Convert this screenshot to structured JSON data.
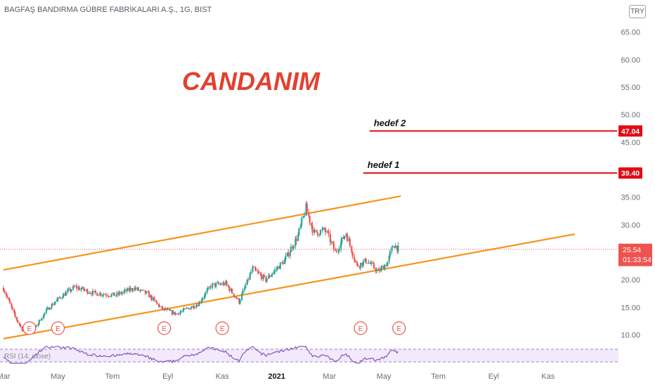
{
  "header": {
    "symbol_title": "BAGFAŞ BANDIRMA GÜBRE FABRİKALARI A.Ş., 1G, BIST",
    "currency": "TRY"
  },
  "annotations": {
    "watermark": "CANDANIM",
    "target1_label": "hedef 1",
    "target2_label": "hedef 2",
    "target1_value": "39.40",
    "target2_value": "47.04"
  },
  "last_price": {
    "value": "25.54",
    "countdown": "01:33:54"
  },
  "rsi": {
    "label": "RSI (14, close)"
  },
  "event_marker_label": "E",
  "colors": {
    "up_candle": "#26a69a",
    "down_candle": "#ef5350",
    "channel": "#f7941d",
    "target_line": "#e50914",
    "watermark": "#e2412f",
    "rsi_line": "#7e57c2",
    "rsi_band": "#e9dcf7",
    "price_badge": "#ef5350"
  },
  "chart_data": {
    "type": "candlestick",
    "title": "BAGFAŞ BANDIRMA GÜBRE FABRİKALARI A.Ş., 1G, BIST",
    "y_axis": {
      "ticks": [
        "10.00",
        "15.00",
        "20.00",
        "25.00",
        "30.00",
        "35.00",
        "40.00",
        "45.00",
        "50.00",
        "55.00",
        "60.00",
        "65.00"
      ],
      "tick_values": [
        10,
        15,
        20,
        25,
        30,
        35,
        40,
        45,
        50,
        55,
        60,
        65
      ],
      "range": [
        7,
        67
      ]
    },
    "x_axis": {
      "ticks": [
        "Mar",
        "May",
        "Tem",
        "Eyl",
        "Kas",
        "2021",
        "Mar",
        "May",
        "Tem",
        "Eyl",
        "Kas"
      ]
    },
    "price_path": [
      {
        "date": "2020-03-01",
        "close": 18.5
      },
      {
        "date": "2020-03-15",
        "close": 13.0
      },
      {
        "date": "2020-03-25",
        "close": 10.2
      },
      {
        "date": "2020-04-05",
        "close": 11.2
      },
      {
        "date": "2020-04-20",
        "close": 14.8
      },
      {
        "date": "2020-05-05",
        "close": 17.0
      },
      {
        "date": "2020-05-20",
        "close": 18.7
      },
      {
        "date": "2020-06-10",
        "close": 17.6
      },
      {
        "date": "2020-07-05",
        "close": 17.2
      },
      {
        "date": "2020-07-25",
        "close": 18.5
      },
      {
        "date": "2020-08-10",
        "close": 17.4
      },
      {
        "date": "2020-08-25",
        "close": 14.8
      },
      {
        "date": "2020-09-10",
        "close": 13.8
      },
      {
        "date": "2020-10-05",
        "close": 15.6
      },
      {
        "date": "2020-10-20",
        "close": 19.0
      },
      {
        "date": "2020-11-05",
        "close": 19.3
      },
      {
        "date": "2020-11-20",
        "close": 16.0
      },
      {
        "date": "2020-12-05",
        "close": 22.0
      },
      {
        "date": "2020-12-20",
        "close": 20.0
      },
      {
        "date": "2021-01-10",
        "close": 23.5
      },
      {
        "date": "2021-01-25",
        "close": 28.0
      },
      {
        "date": "2021-02-03",
        "close": 33.0
      },
      {
        "date": "2021-02-12",
        "close": 28.5
      },
      {
        "date": "2021-02-25",
        "close": 29.0
      },
      {
        "date": "2021-03-08",
        "close": 25.0
      },
      {
        "date": "2021-03-20",
        "close": 28.5
      },
      {
        "date": "2021-04-01",
        "close": 22.5
      },
      {
        "date": "2021-04-12",
        "close": 23.5
      },
      {
        "date": "2021-04-25",
        "close": 21.5
      },
      {
        "date": "2021-05-05",
        "close": 23.0
      },
      {
        "date": "2021-05-12",
        "close": 26.5
      },
      {
        "date": "2021-05-18",
        "close": 25.54
      }
    ],
    "channel_lines": [
      {
        "name": "upper",
        "from": {
          "date": "2020-03-01",
          "price": 21.8
        },
        "to": {
          "date": "2021-05-20",
          "price": 35.2
        }
      },
      {
        "name": "lower",
        "from": {
          "date": "2020-03-01",
          "price": 9.3
        },
        "to": {
          "date": "2021-12-01",
          "price": 28.3
        }
      }
    ],
    "target_lines": [
      {
        "label": "hedef 1",
        "price": 39.4
      },
      {
        "label": "hedef 2",
        "price": 47.04
      }
    ],
    "last_price": 25.54,
    "event_markers": [
      "2020-03-30",
      "2020-05-01",
      "2020-08-28",
      "2020-11-01",
      "2021-04-05",
      "2021-05-18"
    ]
  }
}
